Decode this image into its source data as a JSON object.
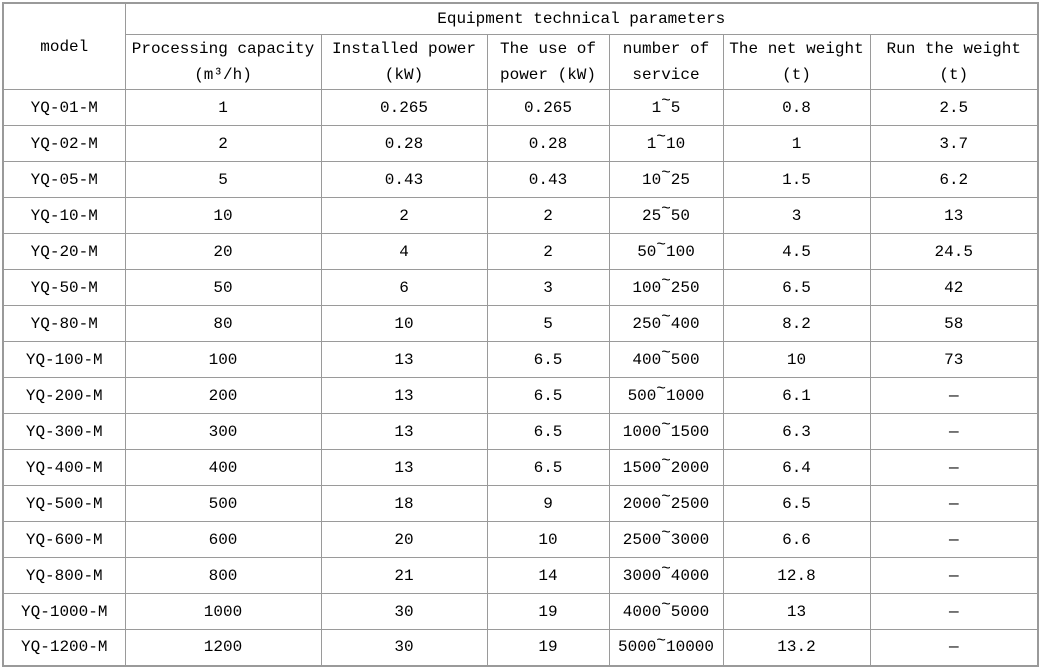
{
  "chart_data": {
    "type": "table",
    "title": "Equipment technical parameters",
    "corner_header": "model",
    "columns": [
      {
        "line1": "Processing capacity",
        "line2": "(m³/h)"
      },
      {
        "line1": "Installed power",
        "line2": "(kW)"
      },
      {
        "line1": "The use of",
        "line2": "power (kW)"
      },
      {
        "line1": "number of",
        "line2": "service"
      },
      {
        "line1": "The net weight",
        "line2": "(t)"
      },
      {
        "line1": "Run the weight",
        "line2": "(t)"
      }
    ],
    "rows": [
      {
        "model": "YQ-01-M",
        "capacity": "1",
        "installed_power": "0.265",
        "use_of_power": "0.265",
        "service": "1~5",
        "net_weight": "0.8",
        "run_weight": "2.5"
      },
      {
        "model": "YQ-02-M",
        "capacity": "2",
        "installed_power": "0.28",
        "use_of_power": "0.28",
        "service": "1~10",
        "net_weight": "1",
        "run_weight": "3.7"
      },
      {
        "model": "YQ-05-M",
        "capacity": "5",
        "installed_power": "0.43",
        "use_of_power": "0.43",
        "service": "10~25",
        "net_weight": "1.5",
        "run_weight": "6.2"
      },
      {
        "model": "YQ-10-M",
        "capacity": "10",
        "installed_power": "2",
        "use_of_power": "2",
        "service": "25~50",
        "net_weight": "3",
        "run_weight": "13"
      },
      {
        "model": "YQ-20-M",
        "capacity": "20",
        "installed_power": "4",
        "use_of_power": "2",
        "service": "50~100",
        "net_weight": "4.5",
        "run_weight": "24.5"
      },
      {
        "model": "YQ-50-M",
        "capacity": "50",
        "installed_power": "6",
        "use_of_power": "3",
        "service": "100~250",
        "net_weight": "6.5",
        "run_weight": "42"
      },
      {
        "model": "YQ-80-M",
        "capacity": "80",
        "installed_power": "10",
        "use_of_power": "5",
        "service": "250~400",
        "net_weight": "8.2",
        "run_weight": "58"
      },
      {
        "model": "YQ-100-M",
        "capacity": "100",
        "installed_power": "13",
        "use_of_power": "6.5",
        "service": "400~500",
        "net_weight": "10",
        "run_weight": "73"
      },
      {
        "model": "YQ-200-M",
        "capacity": "200",
        "installed_power": "13",
        "use_of_power": "6.5",
        "service": "500~1000",
        "net_weight": "6.1",
        "run_weight": "—"
      },
      {
        "model": "YQ-300-M",
        "capacity": "300",
        "installed_power": "13",
        "use_of_power": "6.5",
        "service": "1000~1500",
        "net_weight": "6.3",
        "run_weight": "—"
      },
      {
        "model": "YQ-400-M",
        "capacity": "400",
        "installed_power": "13",
        "use_of_power": "6.5",
        "service": "1500~2000",
        "net_weight": "6.4",
        "run_weight": "—"
      },
      {
        "model": "YQ-500-M",
        "capacity": "500",
        "installed_power": "18",
        "use_of_power": "9",
        "service": "2000~2500",
        "net_weight": "6.5",
        "run_weight": "—"
      },
      {
        "model": "YQ-600-M",
        "capacity": "600",
        "installed_power": "20",
        "use_of_power": "10",
        "service": "2500~3000",
        "net_weight": "6.6",
        "run_weight": "—"
      },
      {
        "model": "YQ-800-M",
        "capacity": "800",
        "installed_power": "21",
        "use_of_power": "14",
        "service": "3000~4000",
        "net_weight": "12.8",
        "run_weight": "—"
      },
      {
        "model": "YQ-1000-M",
        "capacity": "1000",
        "installed_power": "30",
        "use_of_power": "19",
        "service": "4000~5000",
        "net_weight": "13",
        "run_weight": "—"
      },
      {
        "model": "YQ-1200-M",
        "capacity": "1200",
        "installed_power": "30",
        "use_of_power": "19",
        "service": "5000~10000",
        "net_weight": "13.2",
        "run_weight": "—"
      }
    ],
    "layout": {
      "legend": "none",
      "grid": "on",
      "empty_value_marker": "—"
    },
    "colors": {
      "border": "#9a9a9a",
      "text": "#000000",
      "background": "#ffffff"
    }
  }
}
